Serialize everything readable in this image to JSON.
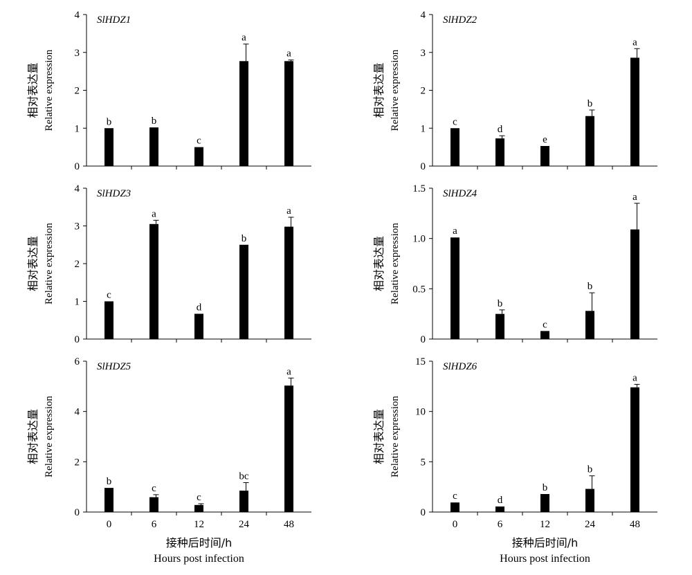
{
  "figure": {
    "xlabel_cn": "接种后时间/h",
    "xlabel_en": "Hours post infection",
    "ylabel_cn": "相对表达量",
    "ylabel_en": "Relative expression"
  },
  "colors": {
    "bar": "#000000",
    "axis": "#000000",
    "background": "#ffffff"
  },
  "chart_data": [
    {
      "type": "bar",
      "title": "SlHDZ1",
      "categories": [
        "0",
        "6",
        "12",
        "24",
        "48"
      ],
      "values": [
        1.0,
        1.02,
        0.5,
        2.77,
        2.77
      ],
      "errors": [
        0.0,
        0.0,
        0.0,
        0.45,
        0.03
      ],
      "significance": [
        "b",
        "b",
        "c",
        "a",
        "a"
      ],
      "ylim": [
        0,
        4
      ],
      "yticks": [
        "0",
        "1",
        "2",
        "3",
        "4"
      ]
    },
    {
      "type": "bar",
      "title": "SlHDZ2",
      "categories": [
        "0",
        "6",
        "12",
        "24",
        "48"
      ],
      "values": [
        1.0,
        0.73,
        0.53,
        1.32,
        2.86
      ],
      "errors": [
        0.0,
        0.07,
        0.0,
        0.16,
        0.24
      ],
      "significance": [
        "c",
        "d",
        "e",
        "b",
        "a"
      ],
      "ylim": [
        0,
        4
      ],
      "yticks": [
        "0",
        "1",
        "2",
        "3",
        "4"
      ]
    },
    {
      "type": "bar",
      "title": "SlHDZ3",
      "categories": [
        "0",
        "6",
        "12",
        "24",
        "48"
      ],
      "values": [
        1.0,
        3.05,
        0.67,
        2.5,
        2.98
      ],
      "errors": [
        0.0,
        0.1,
        0.0,
        0.0,
        0.25
      ],
      "significance": [
        "c",
        "a",
        "d",
        "b",
        "a"
      ],
      "ylim": [
        0,
        4
      ],
      "yticks": [
        "0",
        "1",
        "2",
        "3",
        "4"
      ]
    },
    {
      "type": "bar",
      "title": "SlHDZ4",
      "categories": [
        "0",
        "6",
        "12",
        "24",
        "48"
      ],
      "values": [
        1.01,
        0.25,
        0.08,
        0.28,
        1.09
      ],
      "errors": [
        0.0,
        0.04,
        0.0,
        0.18,
        0.26
      ],
      "significance": [
        "a",
        "b",
        "c",
        "b",
        "a"
      ],
      "ylim": [
        0,
        1.5
      ],
      "yticks": [
        "0",
        "0.5",
        "1.0",
        "1.5"
      ]
    },
    {
      "type": "bar",
      "title": "SlHDZ5",
      "categories": [
        "0",
        "6",
        "12",
        "24",
        "48"
      ],
      "values": [
        0.96,
        0.59,
        0.28,
        0.85,
        5.03
      ],
      "errors": [
        0.0,
        0.1,
        0.05,
        0.32,
        0.3
      ],
      "significance": [
        "b",
        "c",
        "c",
        "bc",
        "a"
      ],
      "ylim": [
        0,
        6
      ],
      "yticks": [
        "0",
        "2",
        "4",
        "6"
      ]
    },
    {
      "type": "bar",
      "title": "SlHDZ6",
      "categories": [
        "0",
        "6",
        "12",
        "24",
        "48"
      ],
      "values": [
        0.95,
        0.55,
        1.79,
        2.3,
        12.4
      ],
      "errors": [
        0.0,
        0.0,
        0.0,
        1.3,
        0.3
      ],
      "significance": [
        "c",
        "d",
        "b",
        "b",
        "a"
      ],
      "ylim": [
        0,
        15
      ],
      "yticks": [
        "0",
        "5",
        "10",
        "15"
      ]
    }
  ]
}
